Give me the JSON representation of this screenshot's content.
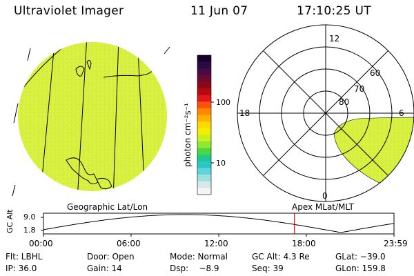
{
  "header": {
    "title": "Ultraviolet Imager",
    "date": "11 Jun 07",
    "time": "17:10:25 UT"
  },
  "colorbar": {
    "unit_label": "photon cm⁻²s⁻¹",
    "ticks": [
      "100",
      "10"
    ],
    "colors": [
      "#1a0033",
      "#2a0a40",
      "#4a0a45",
      "#6a0a30",
      "#8a0818",
      "#b80810",
      "#e01818",
      "#ff5010",
      "#ff8800",
      "#ffb000",
      "#ffd800",
      "#f0f000",
      "#c8f020",
      "#90e830",
      "#48d840",
      "#20c890",
      "#28c8c8",
      "#60d4d8",
      "#a0e0e0",
      "#d8e8e8",
      "#f4f4f4"
    ]
  },
  "polar": {
    "mlt_labels": [
      "12",
      "18",
      "6",
      "0"
    ],
    "lat_labels": [
      "60",
      "70",
      "80"
    ]
  },
  "map_panel": {
    "left_label": "Geographic Lat/Lon",
    "right_label": "Apex MLat/MLT"
  },
  "timeline": {
    "axis_label": "GC Alt",
    "y_ticks": [
      "9.0",
      "1.8"
    ],
    "x_ticks": [
      "00:00",
      "06:00",
      "12:00",
      "18:00",
      "23:59"
    ],
    "marker_fraction": 0.716
  },
  "info": {
    "row1": [
      "Flt: LBHL",
      "Door: Open",
      "Mode: Normal",
      "GC Alt: 4.3 Re",
      "GLat: −39.0"
    ],
    "row2": [
      "IP: 36.0",
      "Gain: 14",
      "Dsp:    −8.9",
      "Seq: 39",
      "GLon: 159.8"
    ]
  },
  "colors": {
    "earth_fill": "#d4ee3c",
    "aurora_fill": "#d4ee3c",
    "marker": "#e00000",
    "line": "#000000"
  }
}
